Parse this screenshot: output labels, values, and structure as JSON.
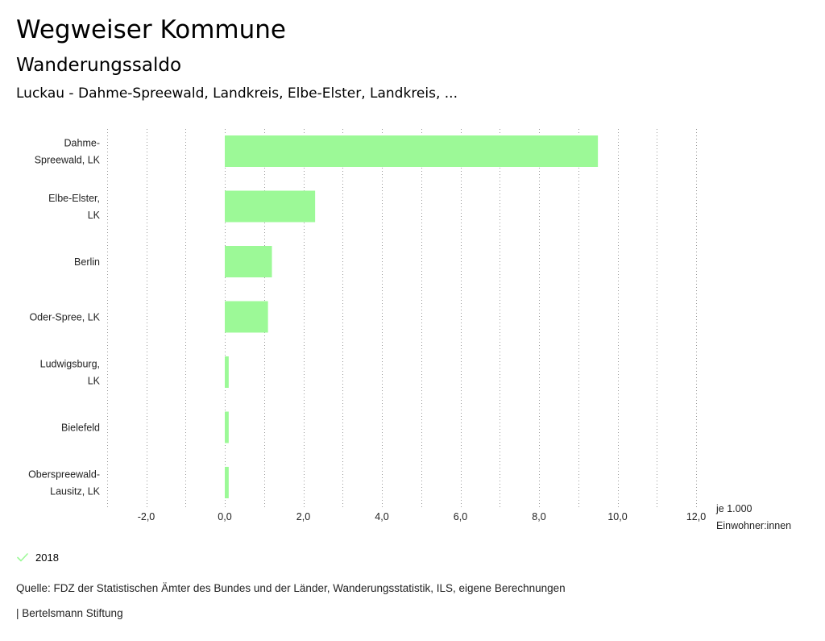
{
  "header": {
    "title": "Wegweiser Kommune",
    "subtitle": "Wanderungssaldo",
    "region": "Luckau - Dahme-Spreewald, Landkreis, Elbe-Elster, Landkreis, ..."
  },
  "chart_data": {
    "type": "bar",
    "orientation": "horizontal",
    "title": "Wanderungssaldo",
    "categories": [
      [
        "Dahme-",
        "Spreewald, LK"
      ],
      [
        "Elbe-Elster,",
        "LK"
      ],
      [
        "Berlin"
      ],
      [
        "Oder-Spree, LK"
      ],
      [
        "Ludwigsburg,",
        "LK"
      ],
      [
        "Bielefeld"
      ],
      [
        "Oberspreewald-",
        "Lausitz, LK"
      ]
    ],
    "series": [
      {
        "name": "2018",
        "color": "#9cf997",
        "values": [
          9.5,
          2.3,
          1.2,
          1.1,
          0.1,
          0.1,
          0.1
        ]
      }
    ],
    "xlim": [
      -3.0,
      12.0
    ],
    "ticks": [
      -2,
      0,
      2,
      4,
      6,
      8,
      10,
      12
    ],
    "tick_labels": [
      "-2,0",
      "0,0",
      "2,0",
      "4,0",
      "6,0",
      "8,0",
      "10,0",
      "12,0"
    ],
    "xlabel": [
      "je 1.000",
      "Einwohner:innen"
    ],
    "grid": "vertical-dotted"
  },
  "legend": {
    "label": "2018",
    "icon": "check-icon",
    "color": "#9cf997"
  },
  "footer": {
    "source": "Quelle: FDZ der Statistischen Ämter des Bundes und der Länder, Wanderungsstatistik, ILS, eigene Berechnungen",
    "credit": "| Bertelsmann Stiftung"
  }
}
